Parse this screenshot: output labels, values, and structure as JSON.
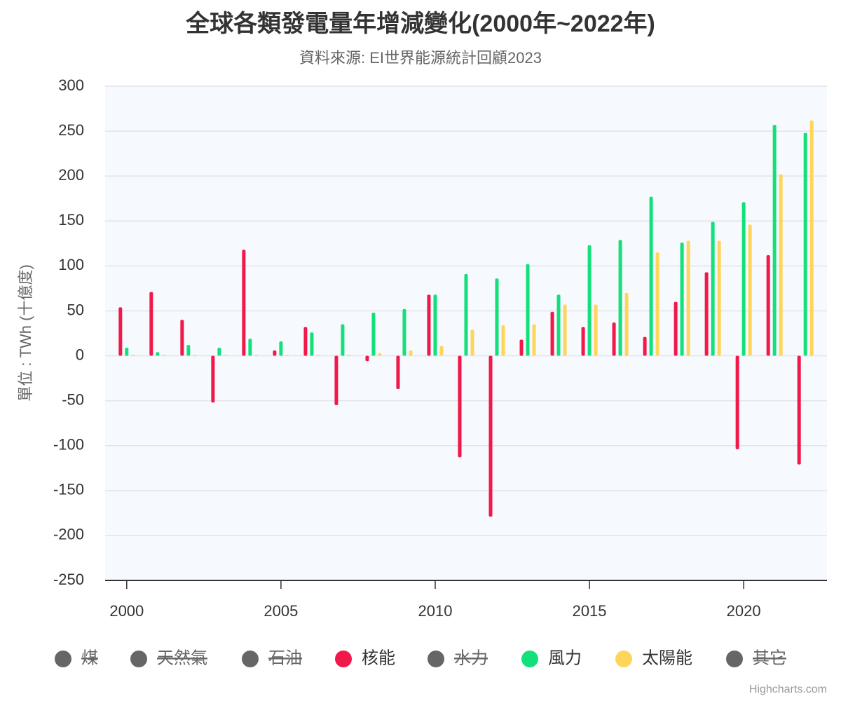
{
  "chart_data": {
    "type": "bar",
    "title": "全球各類發電量年增減變化(2000年~2022年)",
    "subtitle": "資料來源: EI世界能源統計回顧2023",
    "y_axis_label": "單位 : TWh (十億度)",
    "credits": "Highcharts.com",
    "x": [
      2000,
      2001,
      2002,
      2003,
      2004,
      2005,
      2006,
      2007,
      2008,
      2009,
      2010,
      2011,
      2012,
      2013,
      2014,
      2015,
      2016,
      2017,
      2018,
      2019,
      2020,
      2021,
      2022
    ],
    "xlim": [
      1999.3,
      2022.7
    ],
    "xticks": [
      2000,
      2005,
      2010,
      2015,
      2020
    ],
    "ylim": [
      -250,
      300
    ],
    "yticks": [
      300,
      250,
      200,
      150,
      100,
      50,
      0,
      -50,
      -100,
      -150,
      -200,
      -250
    ],
    "grid": true,
    "legend": "bottom",
    "series": [
      {
        "name": "煤",
        "color": "#666666",
        "visible": false
      },
      {
        "name": "天然氣",
        "color": "#666666",
        "visible": false
      },
      {
        "name": "石油",
        "color": "#666666",
        "visible": false
      },
      {
        "name": "核能",
        "color": "#f0194a",
        "values": [
          54,
          71,
          40,
          -52,
          118,
          6,
          32,
          -55,
          -6,
          -37,
          68,
          -113,
          -179,
          18,
          49,
          32,
          37,
          21,
          60,
          93,
          -104,
          112,
          -121
        ]
      },
      {
        "name": "水力",
        "color": "#666666",
        "visible": false
      },
      {
        "name": "風力",
        "color": "#13e07a",
        "values": [
          9,
          4,
          12,
          9,
          19,
          16,
          26,
          35,
          48,
          52,
          68,
          91,
          86,
          102,
          68,
          123,
          129,
          177,
          126,
          149,
          171,
          257,
          248
        ]
      },
      {
        "name": "太陽能",
        "color": "#fed55b",
        "values": [
          1,
          1,
          1,
          1,
          1,
          1,
          1,
          1,
          3,
          6,
          11,
          29,
          34,
          35,
          57,
          57,
          70,
          115,
          128,
          128,
          146,
          202,
          262
        ]
      },
      {
        "name": "其它",
        "color": "#666666",
        "visible": false
      }
    ]
  }
}
